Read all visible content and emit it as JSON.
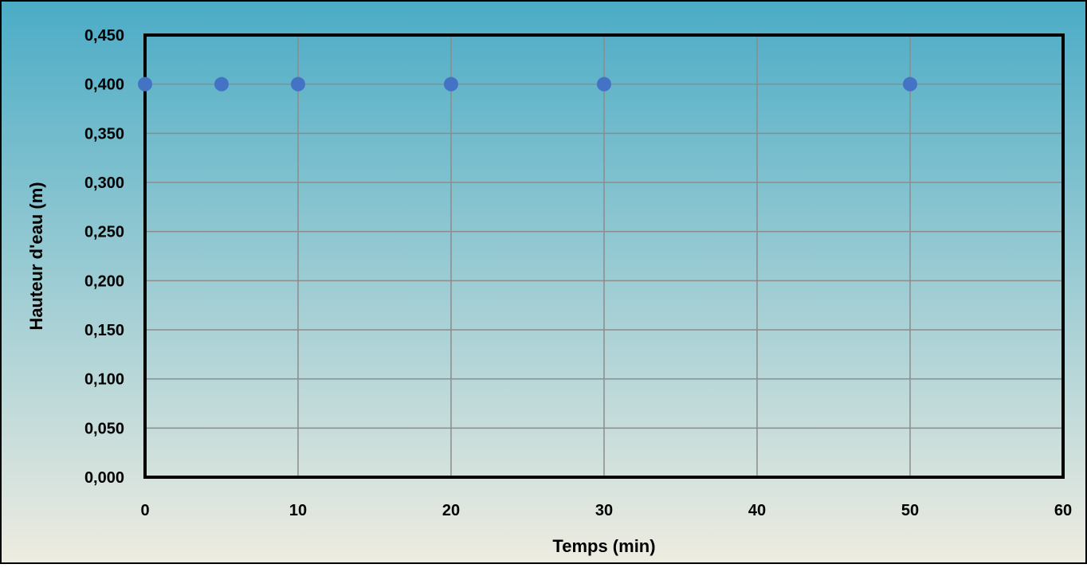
{
  "chart_data": {
    "type": "scatter",
    "title": "",
    "xlabel": "Temps (min)",
    "ylabel": "Hauteur d'eau (m)",
    "xlim": [
      0,
      60
    ],
    "ylim": [
      0,
      0.45
    ],
    "x_ticks": [
      "0",
      "10",
      "20",
      "30",
      "40",
      "50",
      "60"
    ],
    "y_ticks": [
      "0,000",
      "0,050",
      "0,100",
      "0,150",
      "0,200",
      "0,250",
      "0,300",
      "0,350",
      "0,400",
      "0,450"
    ],
    "grid": true,
    "legend": "none",
    "series": [
      {
        "x": [
          0,
          5,
          10,
          20,
          30,
          50
        ],
        "y": [
          0.4,
          0.4,
          0.4,
          0.4,
          0.4,
          0.4
        ]
      }
    ],
    "colors": {
      "marker": "#4472C4",
      "background_top": "#4BACC6",
      "background_bottom": "#EEECE1",
      "gridline": "#8C8C8C",
      "plot_border": "#000000"
    }
  }
}
